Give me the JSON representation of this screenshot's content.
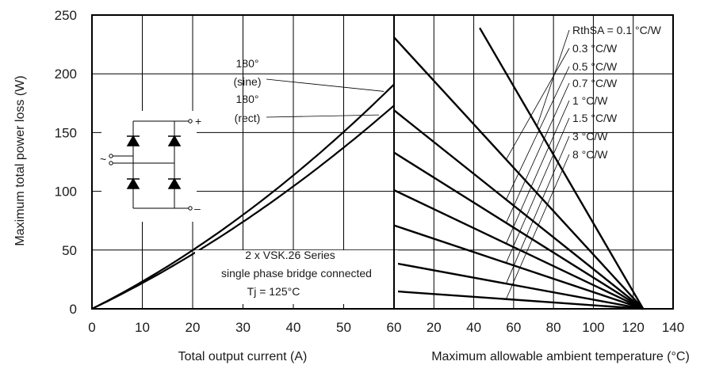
{
  "chart_data": [
    {
      "type": "line",
      "panel": "left",
      "xlabel": "Total output current (A)",
      "ylabel": "Maximum total power loss (W)",
      "xlim": [
        0,
        60
      ],
      "ylim": [
        0,
        250
      ],
      "xticks": [
        "0",
        "10",
        "20",
        "30",
        "40",
        "50",
        "60"
      ],
      "yticks": [
        "0",
        "50",
        "100",
        "150",
        "200",
        "250"
      ],
      "grid": true,
      "series": [
        {
          "name": "180° (sine)",
          "x": [
            0,
            10,
            20,
            30,
            40,
            50,
            60
          ],
          "y": [
            0,
            21,
            49,
            80,
            115,
            152,
            191
          ]
        },
        {
          "name": "180° (rect)",
          "x": [
            0,
            10,
            20,
            30,
            40,
            50,
            60
          ],
          "y": [
            0,
            20,
            46,
            74,
            104,
            137,
            173
          ]
        }
      ],
      "curve_labels": [
        {
          "line1": "180°",
          "line2": "(sine)"
        },
        {
          "line1": "180°",
          "line2": "(rect)"
        }
      ],
      "annotation": [
        "2 x VSK.26 Series",
        "single phase bridge connected",
        "Tj = 125°C"
      ]
    },
    {
      "type": "line",
      "panel": "right",
      "xlabel": "Maximum allowable ambient temperature (°C)",
      "xlim": [
        0,
        140
      ],
      "ylim": [
        0,
        250
      ],
      "xticks": [
        "20",
        "40",
        "60",
        "80",
        "100",
        "120",
        "140"
      ],
      "grid": true,
      "series": [
        {
          "name": "RthSA = 0.1 °C/W",
          "x": [
            43,
            125
          ],
          "y": [
            239,
            0
          ]
        },
        {
          "name": "0.3 °C/W",
          "x": [
            0,
            125
          ],
          "y": [
            231,
            0
          ]
        },
        {
          "name": "0.5 °C/W",
          "x": [
            0,
            125
          ],
          "y": [
            169,
            0
          ]
        },
        {
          "name": "0.7 °C/W",
          "x": [
            0,
            125
          ],
          "y": [
            133,
            0
          ]
        },
        {
          "name": "1 °C/W",
          "x": [
            0,
            125
          ],
          "y": [
            101,
            0
          ]
        },
        {
          "name": "1.5 °C/W",
          "x": [
            0,
            125
          ],
          "y": [
            71,
            0
          ]
        },
        {
          "name": "3 °C/W",
          "x": [
            0,
            125
          ],
          "y": [
            39,
            0
          ]
        },
        {
          "name": "8 °C/W",
          "x": [
            0,
            125
          ],
          "y": [
            15,
            0
          ]
        }
      ]
    }
  ],
  "circuit": {
    "plus_label": "+",
    "minus_label": "–",
    "ac_label": "~"
  }
}
